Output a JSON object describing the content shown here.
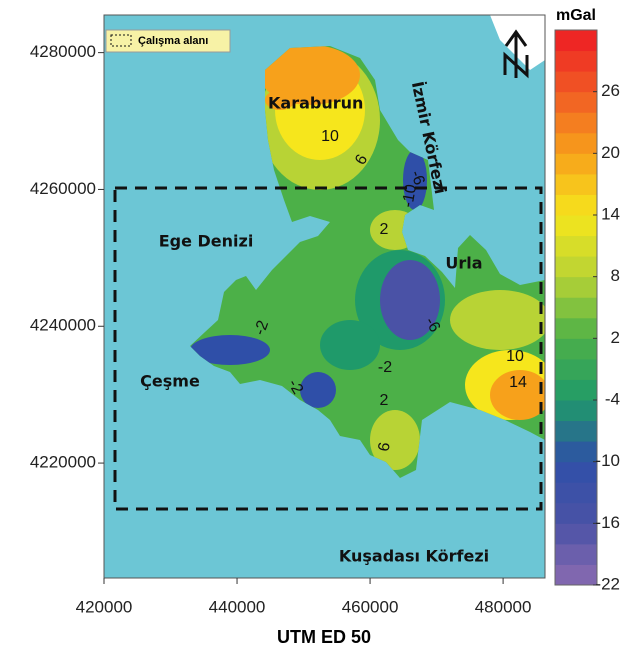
{
  "map": {
    "xlabel": "UTM ED 50",
    "xlim": [
      420000,
      486300
    ],
    "ylim": [
      4203200,
      4285500
    ],
    "xticks": [
      420000,
      440000,
      460000,
      480000
    ],
    "yticks": [
      4220000,
      4240000,
      4260000,
      4280000
    ],
    "legend": "Çalışma alanı",
    "places": [
      "Karaburun",
      "İzmir Körfezi",
      "Ege Denizi",
      "Urla",
      "Çeşme",
      "Kuşadası Körfezi"
    ],
    "contour_labels": [
      "10",
      "6",
      "-6",
      "-10",
      "2",
      "-2",
      "-6",
      "-2",
      "10",
      "14",
      "-2",
      "2",
      "6"
    ]
  },
  "colorbar": {
    "title": "mGal",
    "lim": [
      -22,
      32
    ],
    "ticks": [
      26,
      20,
      14,
      8,
      2,
      -4,
      -10,
      -16,
      -22
    ],
    "colors": [
      "#8b6bb1",
      "#4a52a6",
      "#2f4fa8",
      "#1f9a6a",
      "#4cb048",
      "#b8d335",
      "#f6e61c",
      "#f7a11b",
      "#f15a24",
      "#ed1c24"
    ]
  }
}
